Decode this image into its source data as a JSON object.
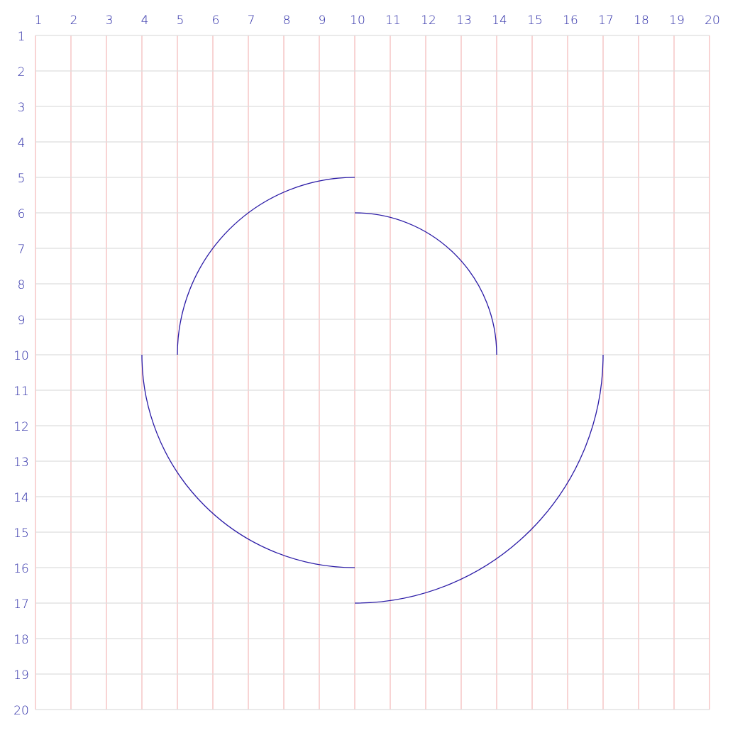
{
  "grid": {
    "x_range": [
      1,
      20
    ],
    "y_range": [
      1,
      20
    ],
    "x_tick_labels": [
      "1",
      "2",
      "3",
      "4",
      "5",
      "6",
      "7",
      "8",
      "9",
      "10",
      "11",
      "12",
      "13",
      "14",
      "15",
      "16",
      "17",
      "18",
      "19",
      "20"
    ],
    "y_tick_labels": [
      "1",
      "2",
      "3",
      "4",
      "5",
      "6",
      "7",
      "8",
      "9",
      "10",
      "11",
      "12",
      "13",
      "14",
      "15",
      "16",
      "17",
      "18",
      "19",
      "20"
    ],
    "vertical_line_color": "#f4b8b8",
    "horizontal_line_color": "#dedede",
    "label_color": "#2a2aa6"
  },
  "curve": {
    "color": "#2a1aa6",
    "arcs": [
      {
        "name": "arc-top-left",
        "center": [
          10,
          10
        ],
        "radius": 5,
        "from": [
          5,
          10
        ],
        "to": [
          10,
          5
        ]
      },
      {
        "name": "arc-top-right",
        "center": [
          10,
          10
        ],
        "radius": 4,
        "from": [
          10,
          6
        ],
        "to": [
          14,
          10
        ]
      },
      {
        "name": "arc-bottom-right",
        "center": [
          10,
          10
        ],
        "radius": 7,
        "from": [
          17,
          10
        ],
        "to": [
          10,
          17
        ]
      },
      {
        "name": "arc-bottom-left",
        "center": [
          10,
          10
        ],
        "radius": 6,
        "from": [
          10,
          16
        ],
        "to": [
          4,
          10
        ]
      }
    ]
  }
}
